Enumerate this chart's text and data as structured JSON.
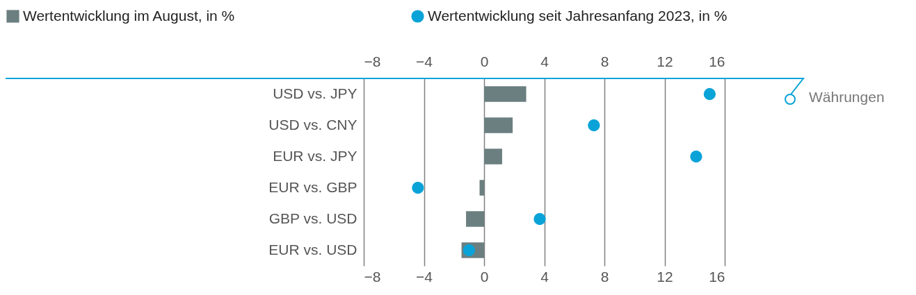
{
  "chart_data": {
    "type": "bar",
    "orientation": "horizontal",
    "categories": [
      "USD vs. JPY",
      "USD vs. CNY",
      "EUR vs. JPY",
      "EUR vs. GBP",
      "GBP vs. USD",
      "EUR vs. USD"
    ],
    "series": [
      {
        "name": "Wertentwicklung im August, in %",
        "color": "#6b7f80",
        "values": [
          2.8,
          1.9,
          1.2,
          -0.3,
          -1.2,
          -1.5
        ]
      },
      {
        "name": "Wertentwicklung seit Jahresanfang 2023, in %",
        "type": "scatter",
        "color": "#0aa3d8",
        "x": [
          "USD vs. JPY",
          "USD vs. CNY",
          "EUR vs. JPY",
          "EUR vs. GBP",
          "GBP vs. USD",
          "EUR vs. USD"
        ],
        "values": [
          15.0,
          7.3,
          14.1,
          -4.4,
          3.7,
          -1.0
        ]
      }
    ],
    "xlim": [
      -8,
      16
    ],
    "xticks": [
      {
        "value": -8,
        "label": "−8"
      },
      {
        "value": -4,
        "label": "−4"
      },
      0,
      4,
      8,
      12,
      16
    ],
    "x2lim": [
      -8,
      16
    ],
    "x2ticks": [
      {
        "value": -8,
        "label": "−8"
      },
      {
        "value": -4,
        "label": "−4"
      },
      0,
      4,
      8,
      12,
      16
    ],
    "grid": "x",
    "legend": "top left",
    "marker": "circle",
    "annotations": [
      "Währungen"
    ]
  }
}
